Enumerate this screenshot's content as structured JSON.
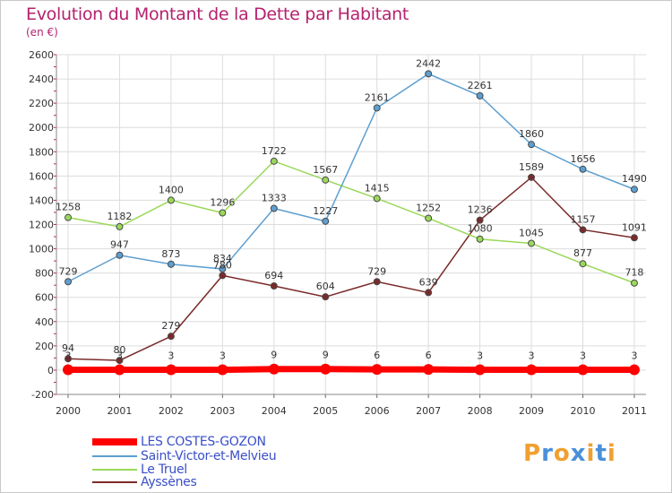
{
  "header": {
    "title": "Evolution du Montant de la Dette par Habitant",
    "subtitle": "(en €)"
  },
  "logo": {
    "text": "Proxiti"
  },
  "chart_data": {
    "type": "line",
    "title": "Evolution du Montant de la Dette par Habitant",
    "subtitle": "(en €)",
    "xlabel": "",
    "ylabel": "",
    "x": [
      "2000",
      "2001",
      "2002",
      "2003",
      "2004",
      "2005",
      "2006",
      "2007",
      "2008",
      "2009",
      "2010",
      "2011"
    ],
    "ylim": [
      -200,
      2600
    ],
    "yticks": [
      "2600",
      "2400",
      "2200",
      "2000",
      "1800",
      "1600",
      "1400",
      "1200",
      "1000",
      "800",
      "600",
      "400",
      "200",
      "0",
      "-200"
    ],
    "grid": true,
    "legend_position": "bottom-left",
    "series": [
      {
        "name": "LES COSTES-GOZON",
        "color": "#ff0000",
        "values": [
          3,
          3,
          3,
          3,
          9,
          9,
          6,
          6,
          3,
          3,
          3,
          3
        ],
        "labels": [
          "3",
          "3",
          "3",
          "3",
          "9",
          "9",
          "6",
          "6",
          "3",
          "3",
          "3",
          "3"
        ]
      },
      {
        "name": "Saint-Victor-et-Melvieu",
        "color": "#5d9fd1",
        "values": [
          729,
          947,
          873,
          834,
          1333,
          1227,
          2161,
          2442,
          2261,
          1860,
          1656,
          1490
        ],
        "labels": [
          "729",
          "947",
          "873",
          "834",
          "1333",
          "1227",
          "2161",
          "2442",
          "2261",
          "1860",
          "1656",
          "1490"
        ]
      },
      {
        "name": "Le Truel",
        "color": "#9ad85a",
        "values": [
          1258,
          1182,
          1400,
          1296,
          1722,
          1567,
          1415,
          1252,
          1080,
          1045,
          877,
          718
        ],
        "labels": [
          "1258",
          "1182",
          "1400",
          "1296",
          "1722",
          "1567",
          "1415",
          "1252",
          "1080",
          "1045",
          "877",
          "718"
        ]
      },
      {
        "name": "Ayssènes",
        "color": "#7a2a2a",
        "values": [
          94,
          80,
          279,
          780,
          694,
          604,
          729,
          639,
          1236,
          1589,
          1157,
          1091
        ],
        "labels": [
          "94",
          "80",
          "279",
          "780",
          "694",
          "604",
          "729",
          "639",
          "1236",
          "1589",
          "1157",
          "1091"
        ]
      }
    ]
  },
  "legend": {
    "items": [
      {
        "label": "LES COSTES-GOZON",
        "color": "#ff0000"
      },
      {
        "label": "Saint-Victor-et-Melvieu",
        "color": "#5d9fd1"
      },
      {
        "label": "Le Truel",
        "color": "#9ad85a"
      },
      {
        "label": "Ayssènes",
        "color": "#7a2a2a"
      }
    ]
  }
}
